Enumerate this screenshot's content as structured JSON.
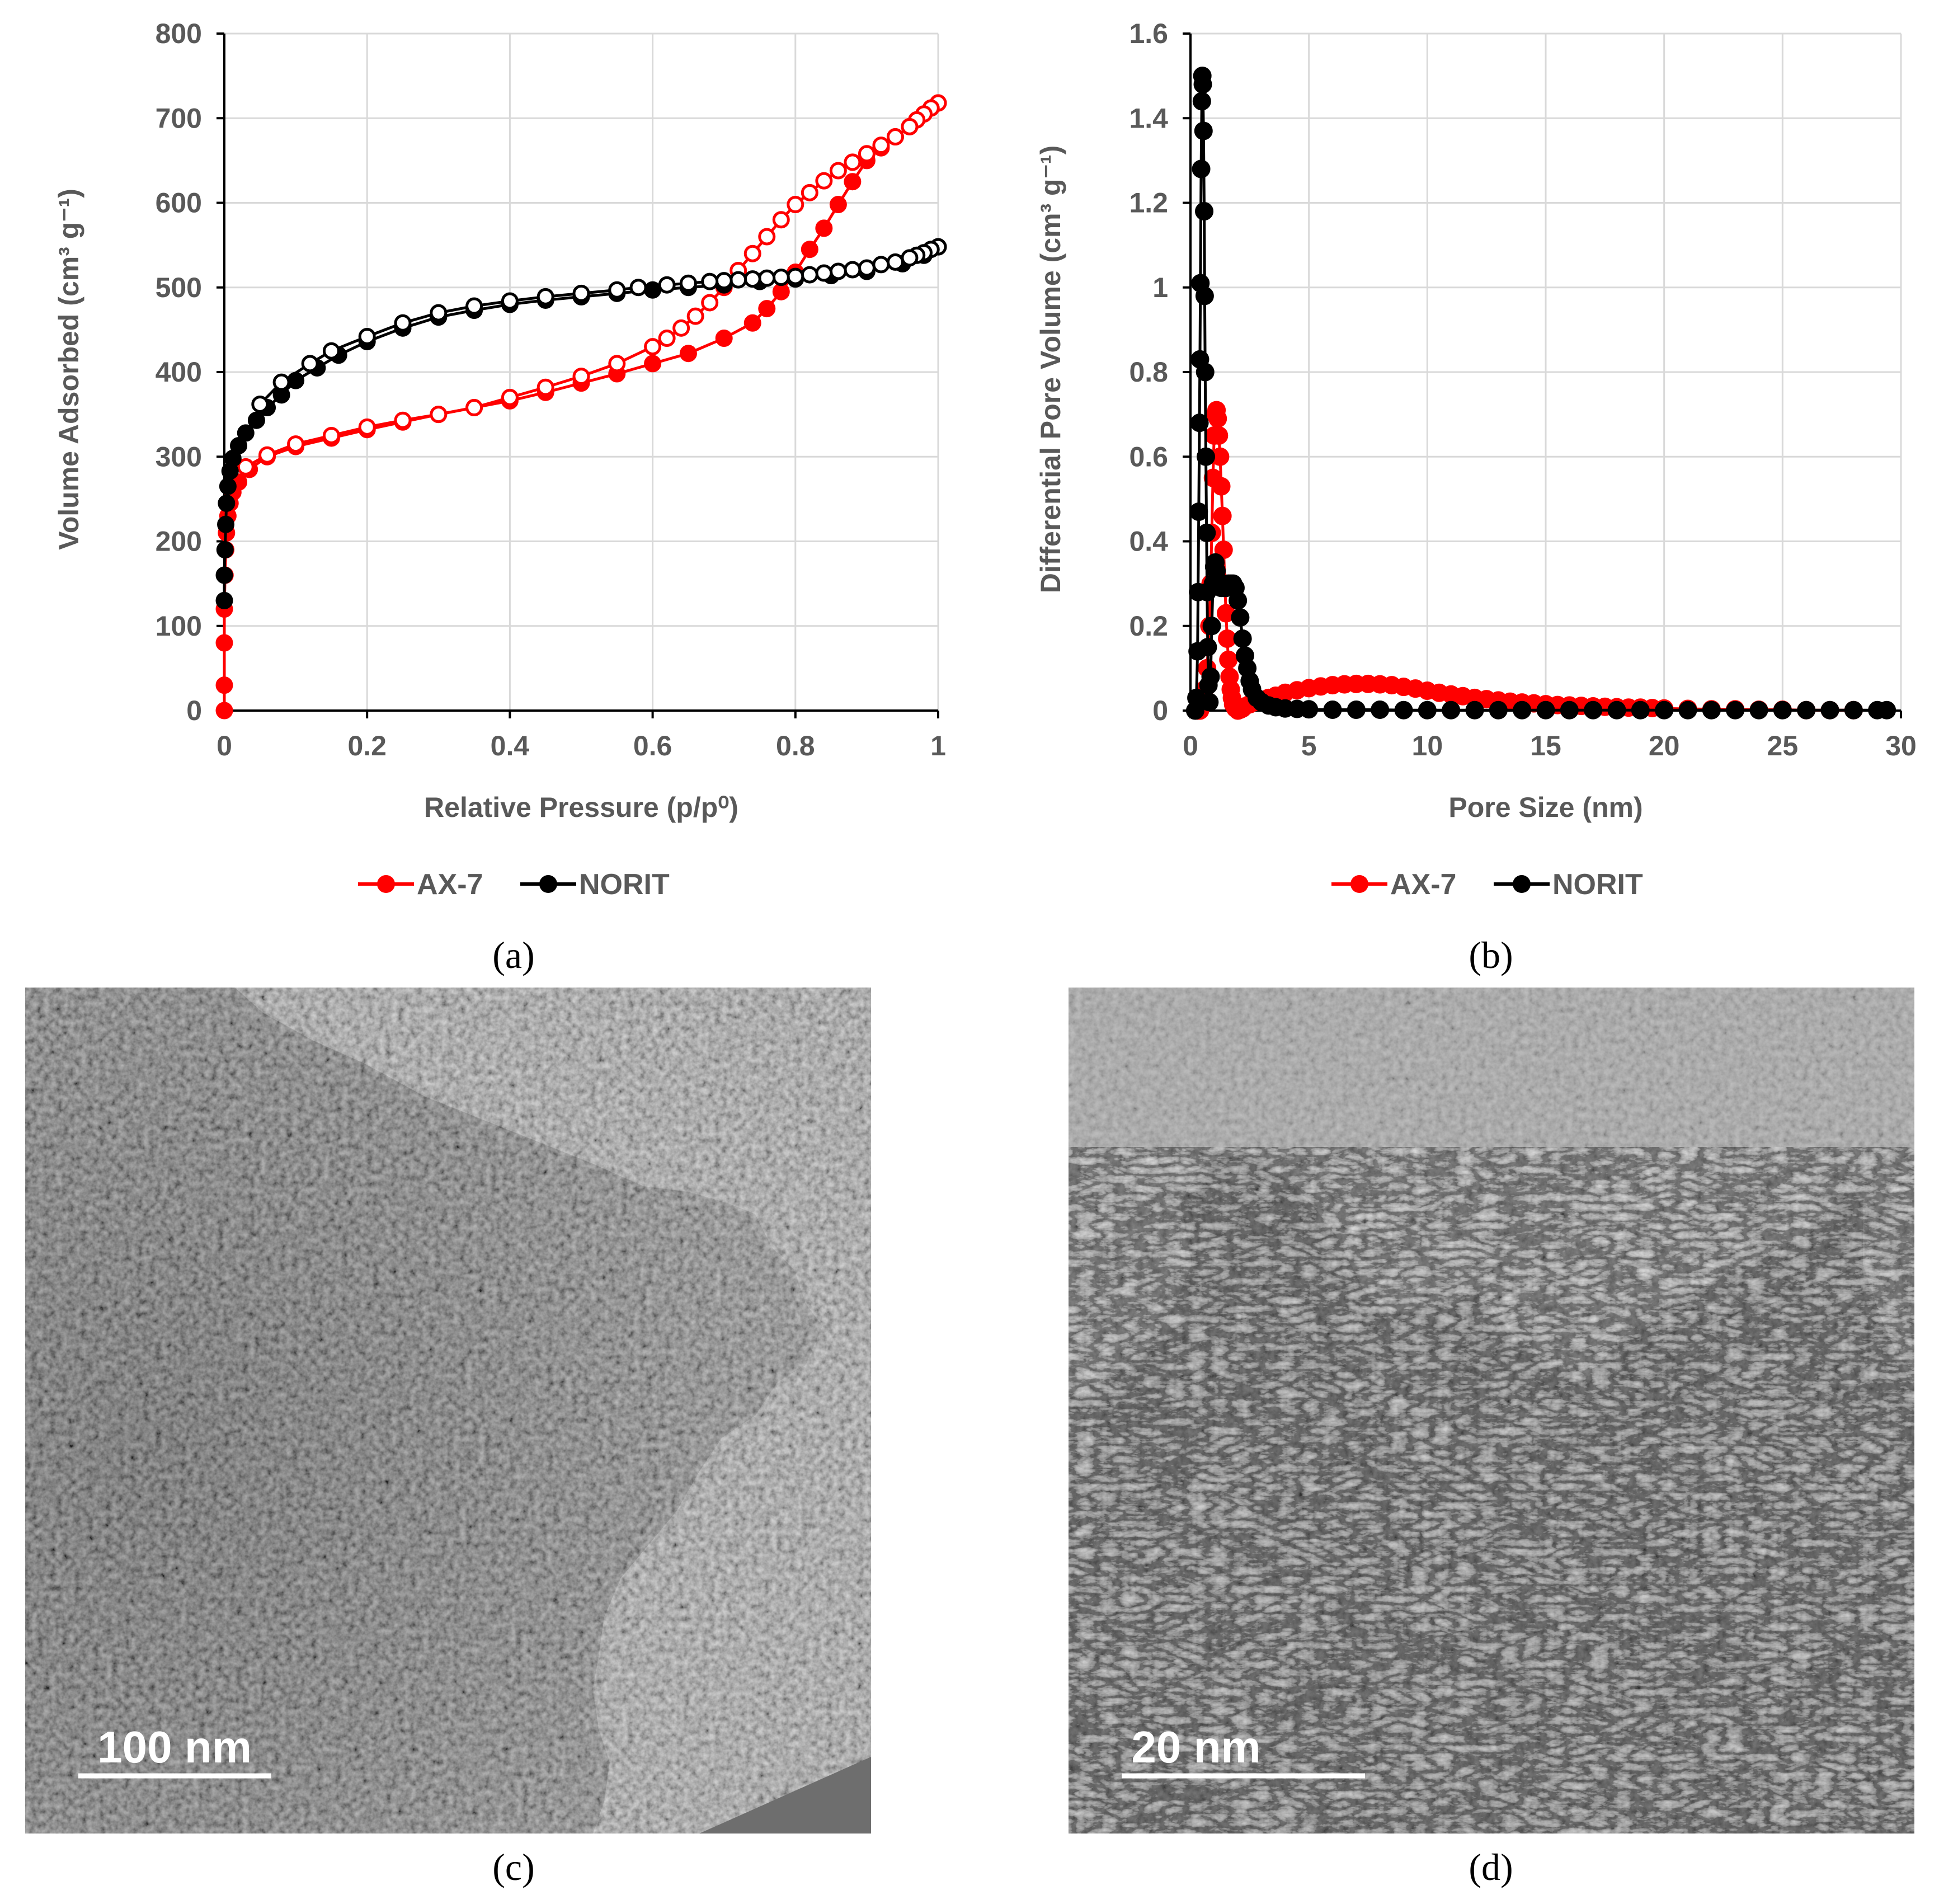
{
  "chart_data": [
    {
      "type": "scatter",
      "panel": "a",
      "title": "",
      "xlabel": "Relative Pressure (p/p⁰)",
      "ylabel": "Volume Adsorbed (cm³ g⁻¹)",
      "xlim": [
        0,
        1
      ],
      "ylim": [
        0,
        800
      ],
      "xticks": [
        0,
        0.2,
        0.4,
        0.6,
        0.8,
        1
      ],
      "xtick_labels": [
        "0",
        "0.2",
        "0.4",
        "0.6",
        "0.8",
        "1"
      ],
      "yticks": [
        0,
        100,
        200,
        300,
        400,
        500,
        600,
        700,
        800
      ],
      "ytick_labels": [
        "0",
        "100",
        "200",
        "300",
        "400",
        "500",
        "600",
        "700",
        "800"
      ],
      "grid": true,
      "legend_position": "bottom",
      "series": [
        {
          "name": "AX-7",
          "branch": "adsorption",
          "color": "#ff0000",
          "filled": true,
          "x": [
            0,
            0,
            0,
            0,
            0.001,
            0.002,
            0.003,
            0.005,
            0.008,
            0.012,
            0.02,
            0.035,
            0.06,
            0.1,
            0.15,
            0.2,
            0.25,
            0.3,
            0.35,
            0.4,
            0.45,
            0.5,
            0.55,
            0.6,
            0.65,
            0.7,
            0.74,
            0.76,
            0.78,
            0.8,
            0.82,
            0.84,
            0.86,
            0.88,
            0.9,
            0.92,
            0.94,
            0.96,
            0.97,
            0.98,
            0.99,
            1.0
          ],
          "y": [
            0,
            30,
            80,
            120,
            160,
            190,
            210,
            230,
            245,
            258,
            270,
            285,
            300,
            312,
            322,
            332,
            341,
            350,
            358,
            366,
            376,
            387,
            398,
            410,
            422,
            440,
            458,
            475,
            495,
            518,
            545,
            570,
            598,
            625,
            650,
            665,
            678,
            690,
            698,
            705,
            712,
            718
          ]
        },
        {
          "name": "AX-7",
          "branch": "desorption",
          "color": "#ff0000",
          "filled": false,
          "x": [
            1.0,
            0.99,
            0.98,
            0.97,
            0.96,
            0.94,
            0.92,
            0.9,
            0.88,
            0.86,
            0.84,
            0.82,
            0.8,
            0.78,
            0.76,
            0.74,
            0.72,
            0.7,
            0.68,
            0.66,
            0.64,
            0.62,
            0.6,
            0.55,
            0.5,
            0.45,
            0.4,
            0.35,
            0.3,
            0.25,
            0.2,
            0.15,
            0.1,
            0.06,
            0.03
          ],
          "y": [
            718,
            712,
            705,
            698,
            690,
            678,
            668,
            658,
            648,
            638,
            626,
            612,
            598,
            580,
            560,
            540,
            520,
            500,
            482,
            466,
            452,
            440,
            430,
            410,
            395,
            382,
            370,
            358,
            350,
            343,
            335,
            325,
            315,
            302,
            288
          ]
        },
        {
          "name": "NORIT",
          "branch": "adsorption",
          "color": "#000000",
          "filled": true,
          "x": [
            0,
            0,
            0.001,
            0.002,
            0.003,
            0.005,
            0.008,
            0.012,
            0.02,
            0.03,
            0.045,
            0.06,
            0.08,
            0.1,
            0.13,
            0.16,
            0.2,
            0.25,
            0.3,
            0.35,
            0.4,
            0.45,
            0.5,
            0.55,
            0.6,
            0.65,
            0.7,
            0.75,
            0.8,
            0.85,
            0.9,
            0.95,
            0.98,
            1.0
          ],
          "y": [
            130,
            160,
            190,
            220,
            245,
            265,
            283,
            298,
            313,
            328,
            343,
            358,
            373,
            390,
            405,
            420,
            436,
            452,
            465,
            473,
            480,
            485,
            489,
            493,
            497,
            500,
            503,
            507,
            510,
            514,
            519,
            528,
            538,
            548
          ]
        },
        {
          "name": "NORIT",
          "branch": "desorption",
          "color": "#000000",
          "filled": false,
          "x": [
            1.0,
            0.99,
            0.98,
            0.97,
            0.96,
            0.94,
            0.92,
            0.9,
            0.88,
            0.86,
            0.84,
            0.82,
            0.8,
            0.78,
            0.76,
            0.74,
            0.72,
            0.7,
            0.68,
            0.65,
            0.62,
            0.58,
            0.55,
            0.5,
            0.45,
            0.4,
            0.35,
            0.3,
            0.25,
            0.2,
            0.15,
            0.12,
            0.08,
            0.05
          ],
          "y": [
            548,
            545,
            541,
            538,
            535,
            530,
            527,
            523,
            521,
            519,
            517,
            515,
            513,
            512,
            511,
            510,
            509,
            508,
            507,
            505,
            503,
            500,
            497,
            493,
            489,
            484,
            478,
            470,
            458,
            442,
            425,
            410,
            388,
            362
          ]
        }
      ]
    },
    {
      "type": "scatter",
      "panel": "b",
      "title": "",
      "xlabel": "Pore Size (nm)",
      "ylabel": "Differential Pore Volume (cm³ g⁻¹)",
      "xlim": [
        0,
        30
      ],
      "ylim": [
        0,
        1.6
      ],
      "xticks": [
        0,
        5,
        10,
        15,
        20,
        25,
        30
      ],
      "xtick_labels": [
        "0",
        "5",
        "10",
        "15",
        "20",
        "25",
        "30"
      ],
      "yticks": [
        0,
        0.2,
        0.4,
        0.6,
        0.8,
        1,
        1.2,
        1.4,
        1.6
      ],
      "ytick_labels": [
        "0",
        "0.2",
        "0.4",
        "0.6",
        "0.8",
        "1",
        "1.2",
        "1.4",
        "1.6"
      ],
      "grid": true,
      "legend_position": "bottom",
      "series": [
        {
          "name": "AX-7",
          "color": "#ff0000",
          "filled": true,
          "x": [
            0.3,
            0.4,
            0.5,
            0.6,
            0.7,
            0.8,
            0.85,
            0.9,
            0.95,
            1.0,
            1.05,
            1.1,
            1.15,
            1.2,
            1.25,
            1.3,
            1.35,
            1.4,
            1.45,
            1.5,
            1.55,
            1.6,
            1.65,
            1.7,
            1.75,
            1.8,
            1.9,
            2.0,
            2.1,
            2.2,
            2.3,
            2.5,
            2.7,
            3.0,
            3.3,
            3.6,
            4.0,
            4.5,
            5.0,
            5.5,
            6.0,
            6.5,
            7.0,
            7.5,
            8.0,
            8.5,
            9.0,
            9.5,
            10,
            10.5,
            11,
            11.5,
            12,
            12.5,
            13,
            13.5,
            14,
            14.5,
            15,
            15.5,
            16,
            16.5,
            17,
            17.5,
            18,
            18.5,
            19,
            19.5,
            20,
            21,
            22,
            23,
            24,
            25,
            26,
            27,
            28
          ],
          "y": [
            0,
            0,
            0.02,
            0.05,
            0.1,
            0.2,
            0.3,
            0.42,
            0.55,
            0.65,
            0.7,
            0.71,
            0.69,
            0.65,
            0.6,
            0.53,
            0.46,
            0.38,
            0.3,
            0.23,
            0.17,
            0.12,
            0.08,
            0.05,
            0.03,
            0.015,
            0.005,
            0,
            0.002,
            0.005,
            0.01,
            0.015,
            0.02,
            0.025,
            0.03,
            0.035,
            0.042,
            0.048,
            0.053,
            0.057,
            0.06,
            0.062,
            0.063,
            0.063,
            0.062,
            0.06,
            0.056,
            0.052,
            0.047,
            0.042,
            0.038,
            0.034,
            0.03,
            0.027,
            0.024,
            0.021,
            0.019,
            0.017,
            0.015,
            0.013,
            0.012,
            0.011,
            0.01,
            0.009,
            0.008,
            0.007,
            0.007,
            0.006,
            0.005,
            0.004,
            0.003,
            0.003,
            0.002,
            0.002,
            0.001,
            0.001,
            0.001
          ]
        },
        {
          "name": "NORIT",
          "color": "#000000",
          "filled": true,
          "x": [
            0.2,
            0.25,
            0.3,
            0.32,
            0.35,
            0.38,
            0.4,
            0.42,
            0.45,
            0.48,
            0.5,
            0.52,
            0.55,
            0.58,
            0.6,
            0.62,
            0.65,
            0.68,
            0.7,
            0.73,
            0.76,
            0.8,
            0.85,
            0.9,
            0.95,
            1.0,
            1.05,
            1.1,
            1.2,
            1.3,
            1.4,
            1.5,
            1.6,
            1.7,
            1.8,
            1.9,
            2.0,
            2.1,
            2.2,
            2.3,
            2.4,
            2.5,
            2.6,
            2.8,
            3.0,
            3.3,
            3.6,
            4.0,
            4.5,
            5.0,
            6,
            7,
            8,
            9,
            10,
            11,
            12,
            13,
            14,
            15,
            16,
            17,
            18,
            19,
            20,
            21,
            22,
            23,
            24,
            25,
            26,
            27,
            28,
            29,
            29.4
          ],
          "y": [
            0,
            0.03,
            0.14,
            0.28,
            0.47,
            0.68,
            0.83,
            1.01,
            1.28,
            1.44,
            1.5,
            1.48,
            1.37,
            1.18,
            0.98,
            0.8,
            0.6,
            0.42,
            0.28,
            0.15,
            0.06,
            0.02,
            0.08,
            0.2,
            0.3,
            0.34,
            0.35,
            0.33,
            0.3,
            0.29,
            0.29,
            0.29,
            0.3,
            0.3,
            0.3,
            0.29,
            0.26,
            0.22,
            0.17,
            0.13,
            0.1,
            0.07,
            0.05,
            0.03,
            0.02,
            0.012,
            0.008,
            0.005,
            0.004,
            0.003,
            0.002,
            0.002,
            0.002,
            0.001,
            0.001,
            0.001,
            0.001,
            0.001,
            0.001,
            0.001,
            0.001,
            0.001,
            0.001,
            0.001,
            0.001,
            0.001,
            0.001,
            0.001,
            0.001,
            0.001,
            0.001,
            0.001,
            0.001,
            0.001,
            0.001
          ]
        }
      ]
    }
  ],
  "panels": {
    "a_label": "(a)",
    "b_label": "(b)",
    "c_label": "(c)",
    "d_label": "(d)",
    "c_scale_bar": "100 nm",
    "d_scale_bar": "20 nm"
  },
  "legend": {
    "ax7": "AX-7",
    "norit": "NORIT"
  }
}
